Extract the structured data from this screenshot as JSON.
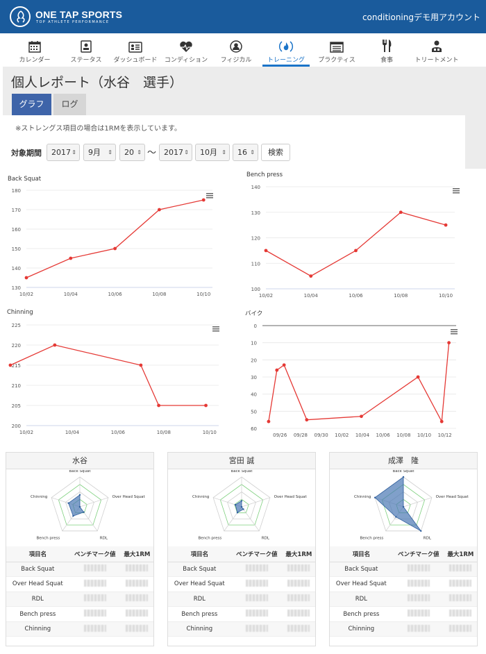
{
  "header": {
    "logo_text": "ONE TAP SPORTS",
    "logo_sub": "TOP ATHLETE PERFORMANCE",
    "account": "conditioningデモ用アカウント"
  },
  "nav": [
    {
      "label": "カレンダー",
      "icon": "calendar-icon"
    },
    {
      "label": "ステータス",
      "icon": "status-icon"
    },
    {
      "label": "ダッシュボード",
      "icon": "dashboard-icon"
    },
    {
      "label": "コンディション",
      "icon": "heart-icon"
    },
    {
      "label": "フィジカル",
      "icon": "person-icon"
    },
    {
      "label": "トレーニング",
      "icon": "fire-icon",
      "active": true
    },
    {
      "label": "プラクティス",
      "icon": "list-icon"
    },
    {
      "label": "食事",
      "icon": "fork-knife-icon"
    },
    {
      "label": "トリートメント",
      "icon": "treatment-icon"
    }
  ],
  "page": {
    "title": "個人レポート（水谷　選手）",
    "tab_graph": "グラフ",
    "tab_log": "ログ",
    "note": "※ストレングス項目の場合は1RMを表示しています。"
  },
  "filter": {
    "label": "対象期間",
    "from_year": "2017",
    "from_month": "9月",
    "from_day": "20",
    "tilde": "〜",
    "to_year": "2017",
    "to_month": "10月",
    "to_day": "16",
    "search": "検索"
  },
  "chart_data": [
    {
      "type": "line",
      "title": "Back Squat",
      "x": [
        "10/02",
        "10/04",
        "10/06",
        "10/08",
        "10/10"
      ],
      "points": [
        [
          0,
          135
        ],
        [
          1,
          145
        ],
        [
          2,
          150
        ],
        [
          3,
          170
        ],
        [
          4,
          175
        ]
      ],
      "ylim": [
        130,
        180
      ],
      "yticks": [
        130,
        140,
        150,
        160,
        170,
        180
      ],
      "color": "#e53935"
    },
    {
      "type": "line",
      "title": "Bench press",
      "x": [
        "10/02",
        "10/04",
        "10/06",
        "10/08",
        "10/10"
      ],
      "points": [
        [
          0,
          115
        ],
        [
          1,
          105
        ],
        [
          2,
          115
        ],
        [
          3,
          130
        ],
        [
          4,
          125
        ]
      ],
      "ylim": [
        100,
        140
      ],
      "yticks": [
        100,
        110,
        120,
        130,
        140
      ],
      "color": "#e53935"
    },
    {
      "type": "line",
      "title": "Chinning",
      "x": [
        "10/02",
        "10/04",
        "10/06",
        "10/08",
        "10/10"
      ],
      "points": [
        [
          -0.35,
          215
        ],
        [
          0.62,
          220
        ],
        [
          2.5,
          215
        ],
        [
          2.89,
          205
        ],
        [
          3.92,
          205
        ]
      ],
      "ylim": [
        200,
        225
      ],
      "yticks": [
        200,
        205,
        210,
        215,
        220,
        225
      ],
      "color": "#e53935"
    },
    {
      "type": "line",
      "title": "バイク",
      "x": [
        "09/26",
        "09/28",
        "09/30",
        "10/02",
        "10/04",
        "10/06",
        "10/08",
        "10/10",
        "10/12"
      ],
      "points": [
        [
          -0.55,
          56
        ],
        [
          -0.15,
          26
        ],
        [
          0.2,
          23
        ],
        [
          1.3,
          55
        ],
        [
          3.95,
          53
        ],
        [
          6.7,
          30
        ],
        [
          7.85,
          56
        ],
        [
          8.2,
          10
        ]
      ],
      "ylim": [
        0,
        60
      ],
      "yticks": [
        0,
        10,
        20,
        30,
        40,
        50,
        60
      ],
      "reversed": true,
      "color": "#e53935"
    }
  ],
  "cards": [
    {
      "name": "水谷",
      "radar": [
        0.4,
        0.0,
        0.22,
        0.38,
        0.4
      ]
    },
    {
      "name": "宮田 誠",
      "radar": [
        0.2,
        0.0,
        0.1,
        0.24,
        0.22
      ]
    },
    {
      "name": "成澤　隆",
      "radar": [
        1.0,
        0.0,
        1.0,
        0.42,
        1.0
      ]
    }
  ],
  "radar_axes": [
    "Back Squat",
    "Over Head Squat",
    "RDL",
    "Bench press",
    "Chinning"
  ],
  "table": {
    "headers": [
      "項目名",
      "ベンチマーク値",
      "最大1RM"
    ],
    "rows": [
      "Back Squat",
      "Over Head Squat",
      "RDL",
      "Bench press",
      "Chinning"
    ]
  }
}
